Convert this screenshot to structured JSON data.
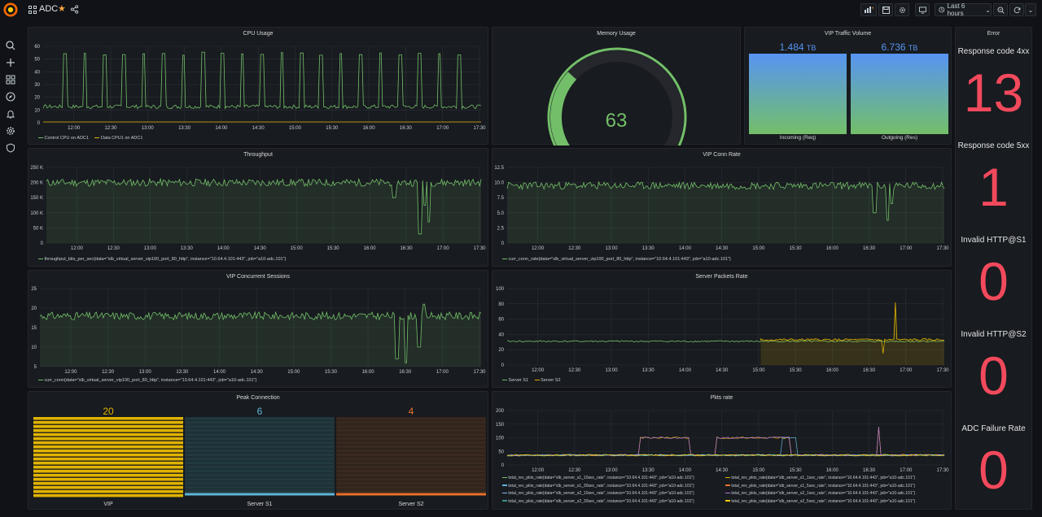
{
  "topbar": {
    "title": "ADC",
    "time_range": "Last 6 hours"
  },
  "colors": {
    "green": "#73bf69",
    "yellow": "#e0b400",
    "blue": "#5fb5d8",
    "orange": "#e8702a",
    "red": "#f2495c",
    "teal": "#3f8f8f"
  },
  "time_ticks": [
    "12:00",
    "12:30",
    "13:00",
    "13:30",
    "14:00",
    "14:30",
    "15:00",
    "15:30",
    "16:00",
    "16:30",
    "17:00",
    "17:30"
  ],
  "cpu": {
    "title": "CPU Usage",
    "yticks": [
      "60",
      "50",
      "40",
      "30",
      "20",
      "10",
      "0"
    ],
    "legend": [
      "Control CPU on ADC1",
      "Data CPU1 on ADC1"
    ]
  },
  "memory": {
    "title": "Memory Usage",
    "value": "63",
    "percent": 63
  },
  "vip_traffic": {
    "title": "VIP Traffic Volume",
    "bars": [
      {
        "label": "Incoming (Req)",
        "value": "1.484",
        "unit": "TB"
      },
      {
        "label": "Outgoing (Res)",
        "value": "6.736",
        "unit": "TB"
      }
    ]
  },
  "error": {
    "title": "Error",
    "stats": [
      {
        "title": "Response code 4xx",
        "value": "13"
      },
      {
        "title": "Response code 5xx",
        "value": "1"
      },
      {
        "title": "Invalid HTTP@S1",
        "value": "0"
      },
      {
        "title": "Invalid HTTP@S2",
        "value": "0"
      },
      {
        "title": "ADC Failure Rate",
        "value": "0"
      }
    ]
  },
  "throughput": {
    "title": "Throughput",
    "yticks": [
      "250 K",
      "200 K",
      "150 K",
      "100 K",
      "50 K",
      "0"
    ],
    "legend": "throughput_bits_per_sec{data=\"slb_virtual_server_vip100_port_80_http\", instance=\"10.64.4.101:443\", job=\"a10-adc.101\"}"
  },
  "vip_conn_rate": {
    "title": "VIP Conn Rate",
    "yticks": [
      "12.5",
      "10.0",
      "7.5",
      "5.0",
      "2.5",
      "0"
    ],
    "legend": "curr_conn_rate{data=\"slb_virtual_server_vip100_port_80_http\", instance=\"10.64.4.101:443\", job=\"a10-adc.101\"}"
  },
  "vip_sessions": {
    "title": "VIP Concurrent Sessions",
    "yticks": [
      "25",
      "20",
      "15",
      "10",
      "5"
    ],
    "legend": "curr_conn{data=\"slb_virtual_server_vip100_port_80_http\", instance=\"10.64.4.101:443\", job=\"a10-adc.101\"}"
  },
  "server_packets": {
    "title": "Server Packets Rate",
    "yticks": [
      "100",
      "80",
      "60",
      "40",
      "20",
      "0"
    ],
    "legend": [
      "Server S1",
      "Server S2"
    ]
  },
  "peak": {
    "title": "Peak Connection",
    "bars": [
      {
        "label": "VIP",
        "value": "20"
      },
      {
        "label": "Server S1",
        "value": "6"
      },
      {
        "label": "Server S2",
        "value": "4"
      }
    ]
  },
  "pkts": {
    "title": "Pkts rate",
    "yticks": [
      "200",
      "150",
      "100",
      "50",
      "0"
    ],
    "legend": [
      "total_rev_pkts_rate{data=\"slb_server_s1_10sec_rate\", instance=\"10.64.4.101:443\", job=\"a10-adc.101\"}",
      "total_rev_pkts_rate{data=\"slb_server_s1_1sec_rate\", instance=\"10.64.4.101:443\", job=\"a10-adc.101\"}",
      "total_rev_pkts_rate{data=\"slb_server_s1_30sec_rate\", instance=\"10.64.4.101:443\", job=\"a10-adc.101\"}",
      "total_rev_pkts_rate{data=\"slb_server_s1_5sec_rate\", instance=\"10.64.4.101:443\", job=\"a10-adc.101\"}",
      "total_rev_pkts_rate{data=\"slb_server_s2_10sec_rate\", instance=\"10.64.4.101:443\", job=\"a10-adc.101\"}",
      "total_rev_pkts_rate{data=\"slb_server_s2_1sec_rate\", instance=\"10.64.4.101:443\", job=\"a10-adc.101\"}",
      "total_rev_pkts_rate{data=\"slb_server_s2_30sec_rate\", instance=\"10.64.4.101:443\", job=\"a10-adc.101\"}",
      "total_rev_pkts_rate{data=\"slb_server_s2_5sec_rate\", instance=\"10.64.4.101:443\", job=\"a10-adc.101\"}"
    ]
  }
}
